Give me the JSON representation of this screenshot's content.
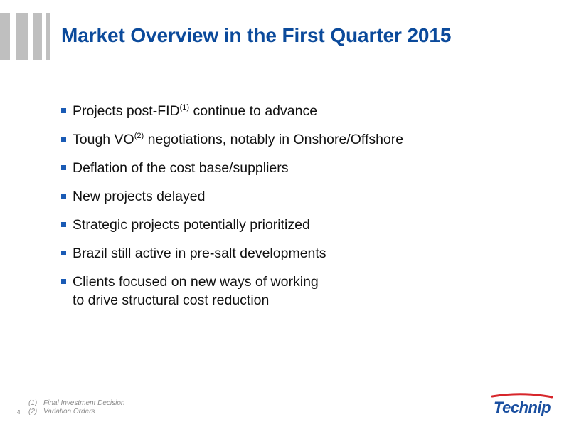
{
  "title": "Market Overview in the First Quarter 2015",
  "bullets": [
    {
      "pre": "Projects post-FID",
      "sup": "(1)",
      "post": " continue to advance"
    },
    {
      "pre": "Tough VO",
      "sup": "(2)",
      "post": " negotiations, notably in Onshore/Offshore"
    },
    {
      "pre": "Deflation of the cost base/suppliers"
    },
    {
      "pre": "New projects delayed"
    },
    {
      "pre": "Strategic projects potentially prioritized"
    },
    {
      "pre": "Brazil still active in pre-salt developments"
    },
    {
      "pre": "Clients focused on new ways of working",
      "line2": "to drive structural cost reduction"
    }
  ],
  "footnotes": [
    {
      "ref": "(1)",
      "text": "Final Investment Decision"
    },
    {
      "ref": "(2)",
      "text": "Variation Orders"
    }
  ],
  "page_number": "4",
  "logo": {
    "text": "Technip",
    "color": "#1a4fa0",
    "swoosh_color": "#d7262b"
  },
  "colors": {
    "title": "#0b4a9b",
    "bullet_marker": "#1a5bb5",
    "decor_bars": "#bfbfbf"
  }
}
